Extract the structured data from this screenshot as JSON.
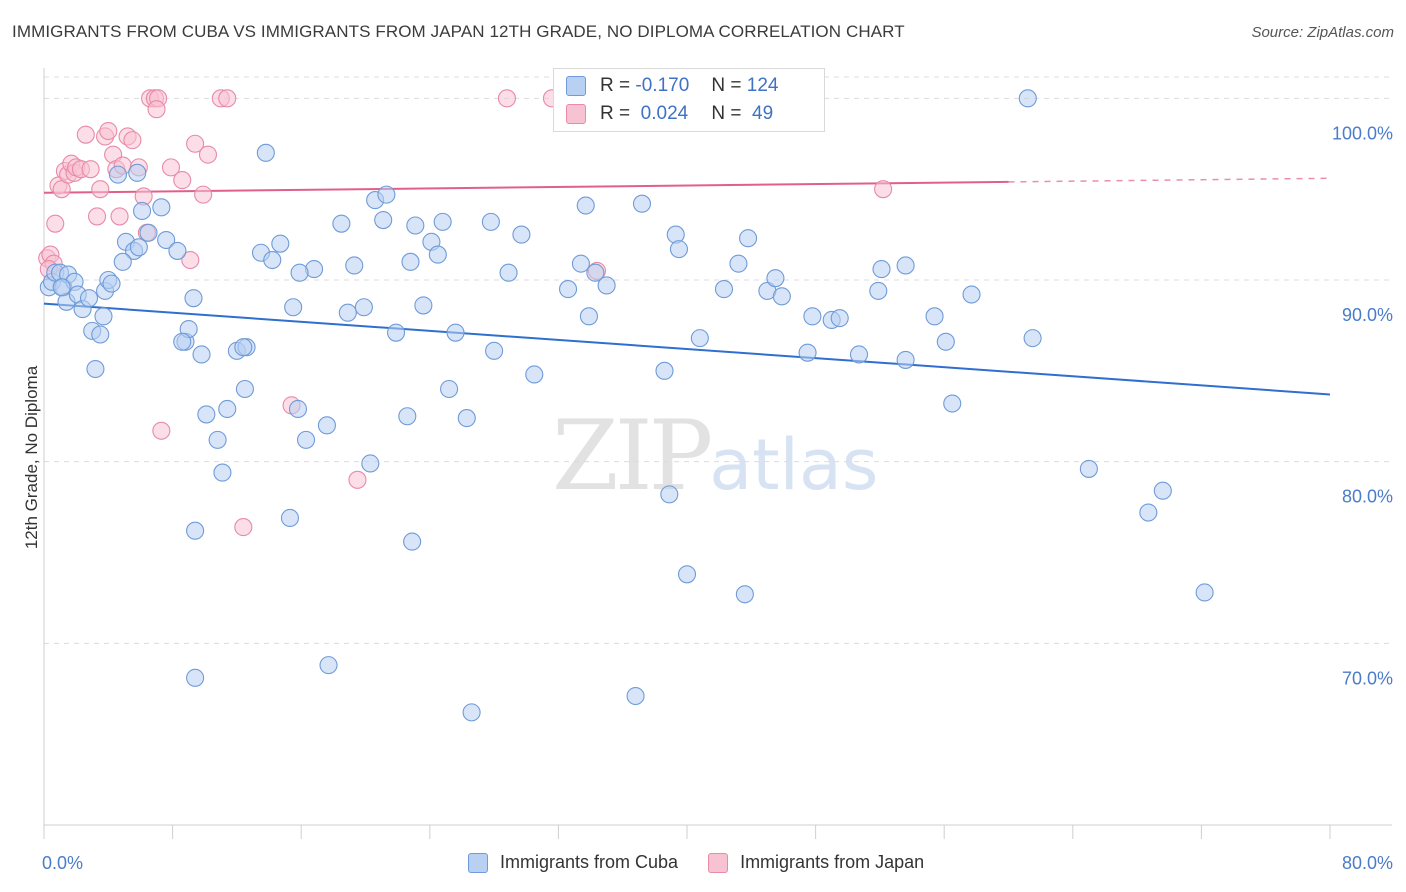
{
  "header": {
    "title": "IMMIGRANTS FROM CUBA VS IMMIGRANTS FROM JAPAN 12TH GRADE, NO DIPLOMA CORRELATION CHART",
    "source": "Source: ZipAtlas.com"
  },
  "watermark": {
    "zip": "ZIP",
    "atlas": "atlas"
  },
  "legend_box": {
    "row1": {
      "r_label": "R =",
      "r_value": "-0.170",
      "n_label": "N =",
      "n_value": "124"
    },
    "row2": {
      "r_label": "R =",
      "r_value": " 0.024",
      "n_label": "N =",
      "n_value": " 49"
    }
  },
  "colors": {
    "cuba_fill": "#b8d0f2",
    "cuba_stroke": "#6f9bd8",
    "cuba_line": "#2f6fcf",
    "japan_fill": "#f7c3d3",
    "japan_stroke": "#e88aa8",
    "japan_line": "#e0608a",
    "grid": "#dcdcdc",
    "tick_text": "#4a7cc9"
  },
  "chart_data": {
    "type": "scatter",
    "title": "IMMIGRANTS FROM CUBA VS IMMIGRANTS FROM JAPAN 12TH GRADE, NO DIPLOMA CORRELATION CHART",
    "xlabel": "",
    "ylabel": "12th Grade, No Diploma",
    "xlim": [
      0,
      80
    ],
    "ylim": [
      60,
      102
    ],
    "x_tick_labels": [
      "0.0%",
      "80.0%"
    ],
    "y_ticks": [
      70,
      80,
      90,
      100
    ],
    "y_tick_labels": [
      "70.0%",
      "80.0%",
      "90.0%",
      "100.0%"
    ],
    "grid": true,
    "legend": "bottom-center",
    "series": [
      {
        "name": "Immigrants from Cuba",
        "R": -0.17,
        "N": 124,
        "trend": {
          "x": [
            0,
            80
          ],
          "y": [
            88.7,
            83.7
          ]
        },
        "points": [
          [
            0.3,
            89.6
          ],
          [
            0.5,
            89.9
          ],
          [
            0.7,
            90.4
          ],
          [
            1.0,
            90.4
          ],
          [
            1.2,
            89.6
          ],
          [
            1.4,
            88.8
          ],
          [
            1.5,
            90.3
          ],
          [
            1.9,
            89.9
          ],
          [
            2.1,
            89.2
          ],
          [
            2.4,
            88.4
          ],
          [
            2.8,
            89.0
          ],
          [
            3.0,
            87.2
          ],
          [
            3.2,
            85.1
          ],
          [
            3.5,
            87.0
          ],
          [
            3.8,
            89.4
          ],
          [
            4.0,
            90.0
          ],
          [
            4.2,
            89.8
          ],
          [
            4.6,
            95.8
          ],
          [
            5.1,
            92.1
          ],
          [
            5.6,
            91.6
          ],
          [
            5.9,
            91.8
          ],
          [
            6.1,
            93.8
          ],
          [
            6.5,
            92.6
          ],
          [
            7.3,
            94.0
          ],
          [
            7.6,
            92.2
          ],
          [
            8.3,
            91.6
          ],
          [
            8.8,
            86.6
          ],
          [
            9.0,
            87.3
          ],
          [
            9.3,
            89.0
          ],
          [
            9.8,
            85.9
          ],
          [
            10.1,
            82.6
          ],
          [
            10.8,
            81.2
          ],
          [
            11.1,
            79.4
          ],
          [
            11.4,
            82.9
          ],
          [
            12.0,
            86.1
          ],
          [
            12.5,
            84.0
          ],
          [
            12.6,
            86.3
          ],
          [
            13.5,
            91.5
          ],
          [
            13.8,
            97.0
          ],
          [
            14.2,
            91.1
          ],
          [
            14.7,
            92.0
          ],
          [
            15.5,
            88.5
          ],
          [
            15.8,
            82.9
          ],
          [
            16.3,
            81.2
          ],
          [
            16.8,
            90.6
          ],
          [
            17.6,
            82.0
          ],
          [
            18.5,
            93.1
          ],
          [
            18.9,
            88.2
          ],
          [
            19.3,
            90.8
          ],
          [
            19.9,
            88.5
          ],
          [
            20.3,
            79.9
          ],
          [
            20.6,
            94.4
          ],
          [
            21.1,
            93.3
          ],
          [
            21.3,
            94.7
          ],
          [
            21.9,
            87.1
          ],
          [
            22.6,
            82.5
          ],
          [
            23.1,
            93.0
          ],
          [
            23.6,
            88.6
          ],
          [
            24.1,
            92.1
          ],
          [
            24.5,
            91.4
          ],
          [
            24.8,
            93.2
          ],
          [
            25.2,
            84.0
          ],
          [
            25.6,
            87.1
          ],
          [
            26.3,
            82.4
          ],
          [
            27.8,
            93.2
          ],
          [
            28.0,
            86.1
          ],
          [
            28.9,
            90.4
          ],
          [
            29.7,
            92.5
          ],
          [
            30.5,
            84.8
          ],
          [
            32.6,
            89.5
          ],
          [
            33.4,
            90.9
          ],
          [
            33.7,
            94.1
          ],
          [
            33.9,
            88.0
          ],
          [
            34.3,
            90.4
          ],
          [
            35.0,
            89.7
          ],
          [
            37.2,
            94.2
          ],
          [
            38.6,
            85.0
          ],
          [
            39.3,
            92.5
          ],
          [
            39.5,
            91.7
          ],
          [
            38.9,
            78.2
          ],
          [
            40.0,
            73.8
          ],
          [
            40.8,
            86.8
          ],
          [
            42.3,
            89.5
          ],
          [
            43.2,
            90.9
          ],
          [
            43.6,
            72.7
          ],
          [
            43.8,
            92.3
          ],
          [
            45.0,
            89.4
          ],
          [
            45.5,
            90.1
          ],
          [
            45.9,
            89.1
          ],
          [
            47.5,
            86.0
          ],
          [
            47.8,
            88.0
          ],
          [
            49.0,
            87.8
          ],
          [
            49.5,
            87.9
          ],
          [
            50.7,
            85.9
          ],
          [
            51.9,
            89.4
          ],
          [
            52.1,
            90.6
          ],
          [
            53.6,
            90.8
          ],
          [
            53.6,
            85.6
          ],
          [
            55.4,
            88.0
          ],
          [
            56.1,
            86.6
          ],
          [
            56.5,
            83.2
          ],
          [
            57.7,
            89.2
          ],
          [
            61.2,
            100.0
          ],
          [
            61.5,
            86.8
          ],
          [
            65.0,
            79.6
          ],
          [
            68.7,
            77.2
          ],
          [
            69.6,
            78.4
          ],
          [
            72.2,
            72.8
          ],
          [
            9.4,
            68.1
          ],
          [
            9.4,
            76.2
          ],
          [
            17.7,
            68.8
          ],
          [
            22.9,
            75.6
          ],
          [
            26.6,
            66.2
          ],
          [
            36.8,
            67.1
          ],
          [
            15.3,
            76.9
          ],
          [
            8.6,
            86.6
          ],
          [
            12.4,
            86.3
          ],
          [
            1.1,
            89.6
          ],
          [
            5.8,
            95.9
          ],
          [
            3.7,
            88.0
          ],
          [
            4.9,
            91.0
          ],
          [
            22.8,
            91.0
          ],
          [
            15.9,
            90.4
          ]
        ]
      },
      {
        "name": "Immigrants from Japan",
        "R": 0.024,
        "N": 49,
        "trend": {
          "x": [
            0,
            60
          ],
          "y": [
            94.8,
            95.4
          ]
        },
        "trend_ext": {
          "x": [
            60,
            80
          ],
          "y": [
            95.4,
            95.6
          ]
        },
        "points": [
          [
            0.2,
            91.2
          ],
          [
            0.4,
            91.4
          ],
          [
            0.6,
            90.9
          ],
          [
            0.7,
            93.1
          ],
          [
            0.9,
            95.2
          ],
          [
            1.1,
            95.0
          ],
          [
            1.3,
            96.0
          ],
          [
            1.5,
            95.8
          ],
          [
            1.7,
            96.4
          ],
          [
            1.9,
            95.9
          ],
          [
            2.0,
            96.2
          ],
          [
            2.3,
            96.1
          ],
          [
            2.6,
            98.0
          ],
          [
            2.9,
            96.1
          ],
          [
            3.3,
            93.5
          ],
          [
            3.5,
            95.0
          ],
          [
            3.8,
            97.9
          ],
          [
            4.0,
            98.2
          ],
          [
            4.3,
            96.9
          ],
          [
            4.5,
            96.1
          ],
          [
            4.7,
            93.5
          ],
          [
            4.9,
            96.3
          ],
          [
            5.2,
            97.9
          ],
          [
            5.5,
            97.7
          ],
          [
            5.9,
            96.2
          ],
          [
            6.2,
            94.6
          ],
          [
            6.4,
            92.6
          ],
          [
            6.6,
            100.0
          ],
          [
            6.9,
            100.0
          ],
          [
            7.1,
            100.0
          ],
          [
            7.0,
            99.4
          ],
          [
            7.3,
            81.7
          ],
          [
            7.9,
            96.2
          ],
          [
            8.6,
            95.5
          ],
          [
            9.1,
            91.1
          ],
          [
            9.4,
            97.5
          ],
          [
            9.9,
            94.7
          ],
          [
            10.2,
            96.9
          ],
          [
            11.0,
            100.0
          ],
          [
            11.4,
            100.0
          ],
          [
            12.4,
            76.4
          ],
          [
            15.4,
            83.1
          ],
          [
            19.5,
            79.0
          ],
          [
            28.8,
            100.0
          ],
          [
            31.6,
            100.0
          ],
          [
            34.4,
            90.5
          ],
          [
            37.6,
            100.0
          ],
          [
            52.2,
            95.0
          ],
          [
            0.3,
            90.6
          ]
        ]
      }
    ]
  },
  "bottom_legend": {
    "cuba_label": "Immigrants from Cuba",
    "japan_label": "Immigrants from Japan"
  }
}
